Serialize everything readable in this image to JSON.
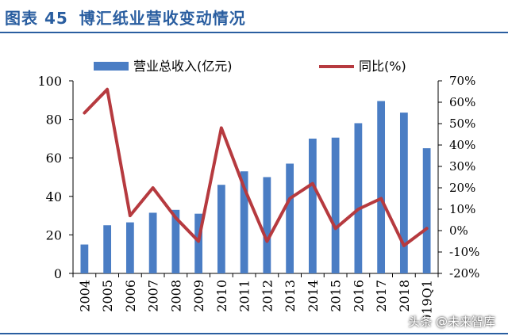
{
  "header": {
    "figure_label": "图表 45",
    "title": "博汇纸业营收变动情况"
  },
  "watermark": "头条 @未来智库",
  "colors": {
    "accent": "#2a5ea0",
    "bar": "#4a7dc4",
    "line": "#b63a3f"
  },
  "chart_data": {
    "type": "bar",
    "categories": [
      "2004",
      "2005",
      "2006",
      "2007",
      "2008",
      "2009",
      "2010",
      "2011",
      "2012",
      "2013",
      "2014",
      "2015",
      "2016",
      "2017",
      "2018",
      "2019Q1"
    ],
    "series": [
      {
        "name": "营业总收入(亿元)",
        "type": "bar",
        "axis": "left",
        "values": [
          15,
          25,
          26.5,
          31.5,
          33,
          31,
          46,
          53,
          50,
          57,
          70,
          70.5,
          78,
          89.5,
          83.5,
          65
        ]
      },
      {
        "name": "同比(%)",
        "type": "line",
        "axis": "right",
        "values": [
          55,
          66,
          7,
          20,
          6,
          -5,
          48,
          20,
          -5,
          15,
          22,
          1,
          10,
          15,
          -7,
          1
        ]
      }
    ],
    "legend": [
      "营业总收入(亿元)",
      "同比(%)"
    ],
    "left_axis": {
      "min": 0,
      "max": 100,
      "step": 20,
      "ticks": [
        "0",
        "20",
        "40",
        "60",
        "80",
        "100"
      ]
    },
    "right_axis": {
      "min": -20,
      "max": 70,
      "step": 10,
      "ticks": [
        "-20%",
        "-10%",
        "0%",
        "10%",
        "20%",
        "30%",
        "40%",
        "50%",
        "60%",
        "70%"
      ]
    },
    "legend_position": "top"
  }
}
